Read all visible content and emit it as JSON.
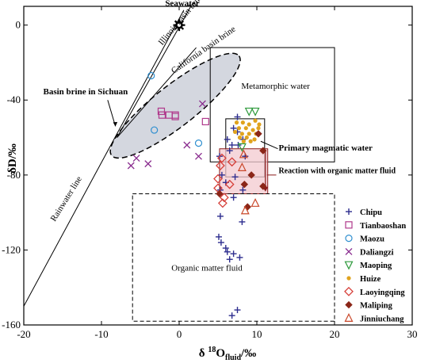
{
  "chart_data": {
    "type": "scatter",
    "xlabel": "δ 18Ofluid /‰",
    "xlabel_main": "δ ",
    "xlabel_sup": "18",
    "xlabel_base": "O",
    "xlabel_sub": "fluid",
    "xlabel_unit": "/‰",
    "ylabel": "δD/‰",
    "xlim": [
      -20,
      30
    ],
    "ylim": [
      -160,
      10
    ],
    "xticks": [
      -20,
      -10,
      0,
      10,
      20,
      30
    ],
    "yticks": [
      0,
      -40,
      -80,
      -120,
      -160
    ],
    "xtick_labels": [
      "-20",
      "-10",
      "0",
      "10",
      "20",
      "30"
    ],
    "ytick_labels": [
      "0",
      "-40",
      "-80",
      "-120",
      "-160"
    ],
    "grid": false,
    "legend_position": "right",
    "series": [
      {
        "name": "Chipu",
        "marker": "plus",
        "color": "#2e2e8f",
        "points": [
          [
            7.5,
            -49
          ],
          [
            7,
            -55
          ],
          [
            7.5,
            -57
          ],
          [
            6.2,
            -61
          ],
          [
            8.2,
            -61
          ],
          [
            6.8,
            -64
          ],
          [
            7.6,
            -64
          ],
          [
            6.5,
            -67
          ],
          [
            5.2,
            -70
          ],
          [
            8.5,
            -70
          ],
          [
            5.5,
            -80
          ],
          [
            7.2,
            -81
          ],
          [
            6,
            -84
          ],
          [
            5.3,
            -88
          ],
          [
            8.2,
            -88
          ],
          [
            7,
            -92
          ],
          [
            5.3,
            -102
          ],
          [
            8.1,
            -105
          ],
          [
            5.1,
            -113
          ],
          [
            5.4,
            -116
          ],
          [
            6,
            -119
          ],
          [
            6.2,
            -121
          ],
          [
            7,
            -122
          ],
          [
            6.5,
            -125
          ],
          [
            7.8,
            -124
          ],
          [
            7.5,
            -152
          ],
          [
            6.8,
            -155
          ]
        ]
      },
      {
        "name": "Tianbaoshan",
        "marker": "square",
        "color": "#b03a8c",
        "points": [
          [
            -2.3,
            -46
          ],
          [
            -2.2,
            -48
          ],
          [
            -1.3,
            -48
          ],
          [
            -0.5,
            -48
          ],
          [
            -0.5,
            -48.8
          ],
          [
            3.4,
            -51.5
          ]
        ]
      },
      {
        "name": "Maozu",
        "marker": "circle",
        "color": "#2f8fd0",
        "points": [
          [
            -3.6,
            -27
          ],
          [
            -3.2,
            -56
          ],
          [
            2.5,
            -63
          ]
        ]
      },
      {
        "name": "Daliangzi",
        "marker": "x",
        "color": "#8a2d8f",
        "points": [
          [
            3,
            -42
          ],
          [
            1,
            -64
          ],
          [
            -5.5,
            -71
          ],
          [
            -4,
            -74
          ],
          [
            -6.2,
            -75
          ],
          [
            2.5,
            -70
          ]
        ]
      },
      {
        "name": "Maoping",
        "marker": "triangle-down",
        "color": "#2e9a3c",
        "points": [
          [
            9,
            -46
          ],
          [
            9.8,
            -46
          ],
          [
            8.1,
            -65
          ]
        ]
      },
      {
        "name": "Huize",
        "marker": "dot",
        "color": "#e0a31e",
        "points": [
          [
            7.4,
            -52
          ],
          [
            8.2,
            -52
          ],
          [
            9,
            -53
          ],
          [
            9.8,
            -51
          ],
          [
            10.3,
            -53
          ],
          [
            7.7,
            -55
          ],
          [
            8.6,
            -55
          ],
          [
            9.5,
            -56
          ],
          [
            10.2,
            -55
          ],
          [
            7.2,
            -57
          ],
          [
            8.1,
            -58
          ],
          [
            9,
            -58
          ],
          [
            9.9,
            -58
          ],
          [
            7.8,
            -60
          ],
          [
            8.7,
            -60
          ],
          [
            9.7,
            -61
          ],
          [
            8.3,
            -62
          ],
          [
            9.2,
            -62
          ]
        ]
      },
      {
        "name": "Laoyingqing",
        "marker": "diamond",
        "color": "#d6403a",
        "points": [
          [
            5.5,
            -71
          ],
          [
            5.3,
            -75
          ],
          [
            6.8,
            -73
          ],
          [
            5,
            -82
          ],
          [
            6.5,
            -85
          ],
          [
            5,
            -87
          ],
          [
            5.8,
            -92
          ],
          [
            5.6,
            -95
          ]
        ]
      },
      {
        "name": "Maliping",
        "marker": "diamond-filled",
        "color": "#8b2618",
        "points": [
          [
            10.2,
            -58
          ],
          [
            10.8,
            -67
          ],
          [
            9.3,
            -80
          ],
          [
            8.4,
            -85
          ],
          [
            10.8,
            -86
          ],
          [
            8.8,
            -97
          ],
          [
            5.2,
            -90
          ]
        ]
      },
      {
        "name": "Jinniuchang",
        "marker": "triangle",
        "color": "#c9482a",
        "points": [
          [
            8.3,
            -69
          ],
          [
            8.1,
            -76
          ],
          [
            9.8,
            -95
          ],
          [
            8.5,
            -99
          ]
        ]
      }
    ],
    "regions": [
      {
        "label": "Metamorphic water",
        "kind": "rect-solid"
      },
      {
        "label": "Primary magmatic water",
        "kind": "rect-solid"
      },
      {
        "label": "Organic matter fluid",
        "kind": "rect-dashed"
      },
      {
        "label": "Basin brine in Sichuan",
        "kind": "dashed-ellipse-shaded"
      }
    ],
    "lines": [
      {
        "label": "Rainwater line"
      },
      {
        "label": "Illinois basin brine"
      },
      {
        "label": "California basin brine"
      },
      {
        "label": "Seawater"
      }
    ],
    "annotations": {
      "reaction": "Reaction with organic matter fluid"
    }
  }
}
